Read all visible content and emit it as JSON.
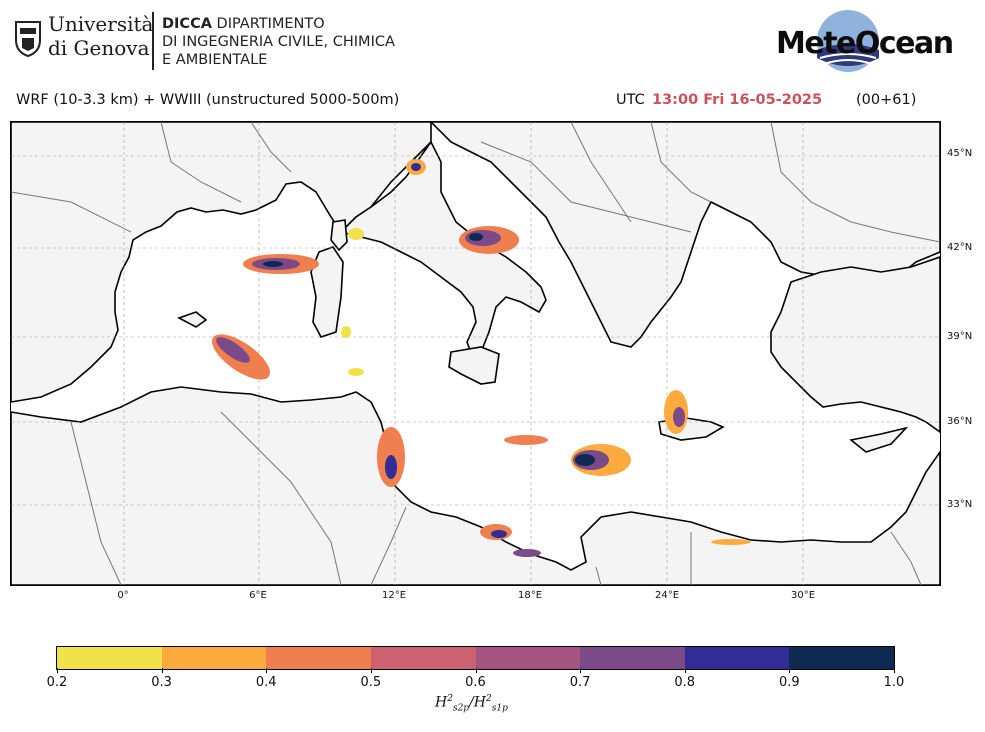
{
  "header": {
    "university_line1": "Università",
    "university_line2": "di Genova",
    "dept_line1_bold": "DICCA",
    "dept_line1_rest": " DIPARTIMENTO",
    "dept_line2": "DI INGEGNERIA CIVILE, CHIMICA",
    "dept_line3": "E AMBIENTALE",
    "brand_logo_text": "MeteOcean"
  },
  "info": {
    "model": "WRF (10-3.3 km) + WWIII (unstructured 5000-500m)",
    "utc_label": "UTC",
    "time": "13:00 Fri 16-05-2025",
    "lead": "(00+61)"
  },
  "map": {
    "lat_labels": [
      "45°N",
      "42°N",
      "39°N",
      "36°N",
      "33°N"
    ],
    "lon_labels": [
      "0°",
      "6°E",
      "12°E",
      "18°E",
      "24°E",
      "30°E"
    ],
    "land_color": "#f4f4f4",
    "sea_color": "#ffffff"
  },
  "colorbar": {
    "ticks": [
      "0.2",
      "0.3",
      "0.4",
      "0.5",
      "0.6",
      "0.7",
      "0.8",
      "0.9",
      "1.0"
    ],
    "colors": [
      "#f2e24a",
      "#fdaa3e",
      "#f07f4f",
      "#cc6170",
      "#a35480",
      "#7b4a88",
      "#312c96",
      "#0f2a52"
    ],
    "title_base": "H",
    "title_sub1": "s2p",
    "title_sub2": "s1p",
    "title_sup": "2"
  }
}
